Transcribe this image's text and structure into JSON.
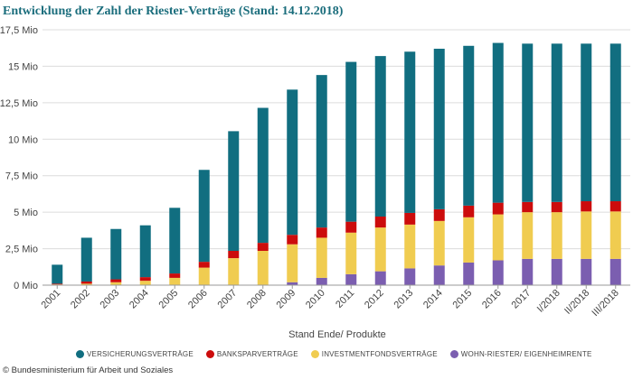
{
  "title": "Entwicklung der Zahl der Riester-Verträge (Stand: 14.12.2018)",
  "copyright": "© Bundesministerium für Arbeit und Soziales",
  "chart_data": {
    "type": "bar",
    "stacked": true,
    "title": "Entwicklung der Zahl der Riester-Verträge (Stand: 14.12.2018)",
    "xlabel": "Stand Ende/ Produkte",
    "ylabel": "",
    "ylim": [
      0,
      17.5
    ],
    "yticks": [
      0,
      2.5,
      5,
      7.5,
      10,
      12.5,
      15,
      17.5
    ],
    "ytick_labels": [
      "0 Mio",
      "2,5 Mio",
      "5 Mio",
      "7,5 Mio",
      "10 Mio",
      "12,5 Mio",
      "15 Mio",
      "17,5 Mio"
    ],
    "grid": true,
    "legend_position": "bottom",
    "categories": [
      "2001",
      "2002",
      "2003",
      "2004",
      "2005",
      "2006",
      "2007",
      "2008",
      "2009",
      "2010",
      "2011",
      "2012",
      "2013",
      "2014",
      "2015",
      "2016",
      "2017",
      "I/2018",
      "II/2018",
      "III/2018"
    ],
    "series": [
      {
        "name": "WOHN-RIESTER/ EIGENHEIMRENTE",
        "color": "#7b5eb0",
        "values": [
          0,
          0,
          0,
          0,
          0,
          0,
          0,
          0,
          0.2,
          0.5,
          0.75,
          0.95,
          1.15,
          1.35,
          1.55,
          1.7,
          1.8,
          1.8,
          1.8,
          1.8
        ]
      },
      {
        "name": "INVESTMENTFONDSVERTRÄGE",
        "color": "#f0cc50",
        "values": [
          0.05,
          0.1,
          0.2,
          0.3,
          0.5,
          1.2,
          1.85,
          2.35,
          2.6,
          2.75,
          2.85,
          3.0,
          3.0,
          3.05,
          3.1,
          3.15,
          3.2,
          3.2,
          3.25,
          3.25
        ]
      },
      {
        "name": "BANKSPARVERTRÄGE",
        "color": "#cc0c0c",
        "values": [
          0.05,
          0.15,
          0.2,
          0.25,
          0.3,
          0.4,
          0.5,
          0.55,
          0.65,
          0.7,
          0.75,
          0.75,
          0.8,
          0.8,
          0.8,
          0.8,
          0.7,
          0.7,
          0.7,
          0.7
        ]
      },
      {
        "name": "VERSICHERUNGSVERTRÄGE",
        "color": "#116e80",
        "values": [
          1.3,
          3.0,
          3.45,
          3.55,
          4.5,
          6.3,
          8.2,
          9.25,
          9.95,
          10.45,
          10.95,
          11.0,
          11.05,
          11.0,
          10.95,
          10.95,
          10.85,
          10.85,
          10.8,
          10.8
        ]
      }
    ],
    "legend_order": [
      "VERSICHERUNGSVERTRÄGE",
      "BANKSPARVERTRÄGE",
      "INVESTMENTFONDSVERTRÄGE",
      "WOHN-RIESTER/ EIGENHEIMRENTE"
    ]
  }
}
